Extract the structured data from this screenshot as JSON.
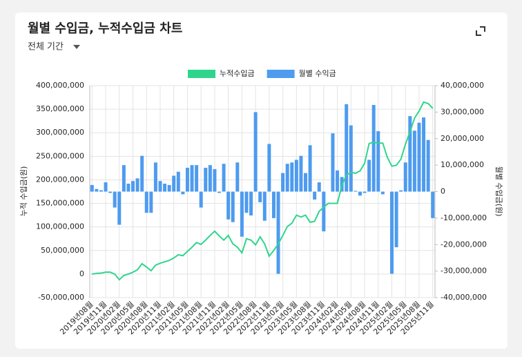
{
  "chart_data": {
    "type": "bar",
    "title": "월별 수입금, 누적수입금 차트",
    "filter": "전체 기간",
    "y_label": "누적 수입금(원)",
    "y2_label": "월별 수입금(원)",
    "categories": [
      "2019년08월",
      null,
      null,
      "2019년11월",
      null,
      null,
      "2020년02월",
      null,
      null,
      "2020년05월",
      null,
      null,
      "2020년08월",
      null,
      null,
      "2020년11월",
      null,
      null,
      "2021년02월",
      null,
      null,
      "2021년05월",
      null,
      null,
      "2021년08월",
      null,
      null,
      "2021년11월",
      null,
      null,
      "2022년02월",
      null,
      null,
      "2022년05월",
      null,
      null,
      "2022년08월",
      null,
      null,
      "2022년11월",
      null,
      null,
      "2023년02월",
      null,
      null,
      "2023년05월",
      null,
      null,
      "2023년08월",
      null,
      null,
      "2023년11월",
      null,
      null,
      "2024년02월",
      null,
      null,
      "2024년05월",
      null,
      null,
      "2024년08월",
      null,
      null,
      "2024년11월",
      null,
      null,
      "2025년02월",
      null,
      null,
      "2025년05월",
      null,
      null,
      "2025년08월",
      null,
      null,
      "2025년11월"
    ],
    "series": [
      {
        "name": "누적수입금",
        "type": "line",
        "color": "#2fd58c",
        "axis": "y",
        "values": [
          0,
          1500000,
          2000000,
          4000000,
          4000000,
          0,
          -12000000,
          -3000000,
          0,
          4000000,
          9000000,
          22000000,
          15000000,
          7000000,
          19000000,
          23000000,
          26000000,
          29000000,
          34000000,
          41000000,
          39000000,
          48000000,
          57000000,
          67000000,
          63000000,
          72000000,
          82000000,
          91000000,
          81000000,
          72000000,
          82000000,
          64000000,
          57000000,
          45000000,
          75000000,
          72000000,
          62000000,
          79000000,
          64000000,
          38000000,
          50000000,
          64000000,
          82000000,
          101000000,
          108000000,
          125000000,
          121000000,
          125000000,
          110000000,
          112000000,
          133000000,
          142000000,
          150000000,
          150000000,
          150000000,
          188000000,
          210000000,
          216000000,
          214000000,
          219000000,
          235000000,
          277000000,
          280000000,
          278000000,
          278000000,
          248000000,
          229000000,
          231000000,
          244000000,
          276000000,
          302000000,
          331000000,
          346000000,
          365000000,
          362000000,
          352000000
        ]
      },
      {
        "name": "월별 수익금",
        "type": "bar",
        "color": "#4e9bef",
        "axis": "y2",
        "values": [
          2500000,
          1000000,
          500000,
          3500000,
          -500000,
          -6000000,
          -12500000,
          10000000,
          3000000,
          4000000,
          5000000,
          13500000,
          -8000000,
          -8000000,
          11000000,
          4000000,
          3000000,
          2500000,
          6000000,
          7500000,
          -1000000,
          9000000,
          10000000,
          10000000,
          -6000000,
          9000000,
          10000000,
          8500000,
          -500000,
          10500000,
          -10500000,
          -11500000,
          11000000,
          -17000000,
          -8000000,
          -9000000,
          30000000,
          -4000000,
          -11000000,
          18000000,
          -10000000,
          -31000000,
          7000000,
          10500000,
          11000000,
          12000000,
          13500000,
          7000000,
          17500000,
          -3000000,
          3500000,
          -15000000,
          0,
          22000000,
          8000000,
          5500000,
          33000000,
          25000000,
          300000,
          -1500000,
          -500000,
          12000000,
          32700000,
          22800000,
          -1000000,
          0,
          -31000000,
          -21000000,
          500000,
          11000000,
          28500000,
          23000000,
          26000000,
          28000000,
          19500000,
          -10000000
        ]
      }
    ],
    "ylim": [
      -50000000,
      400000000
    ],
    "yticks": [
      {
        "value": -50000000,
        "label": "-50,000,000"
      },
      0,
      {
        "value": 50000000,
        "label": "50,000,000"
      },
      {
        "value": 100000000,
        "label": "100,000,000"
      },
      {
        "value": 150000000,
        "label": "150,000,000"
      },
      {
        "value": 200000000,
        "label": "200,000,000"
      },
      {
        "value": 250000000,
        "label": "250,000,000"
      },
      {
        "value": 300000000,
        "label": "300,000,000"
      },
      {
        "value": 350000000,
        "label": "350,000,000"
      },
      {
        "value": 400000000,
        "label": "400,000,000"
      }
    ],
    "y2lim": [
      -40000000,
      40000000
    ],
    "y2ticks": [
      {
        "value": -40000000,
        "label": "-40,000,000"
      },
      {
        "value": -30000000,
        "label": "-30,000,000"
      },
      {
        "value": -20000000,
        "label": "-20,000,000"
      },
      {
        "value": -10000000,
        "label": "-10,000,000"
      },
      0,
      {
        "value": 10000000,
        "label": "10,000,000"
      },
      {
        "value": 20000000,
        "label": "20,000,000"
      },
      {
        "value": 30000000,
        "label": "30,000,000"
      },
      {
        "value": 40000000,
        "label": "40,000,000"
      }
    ],
    "grid": true,
    "legend": "top"
  }
}
